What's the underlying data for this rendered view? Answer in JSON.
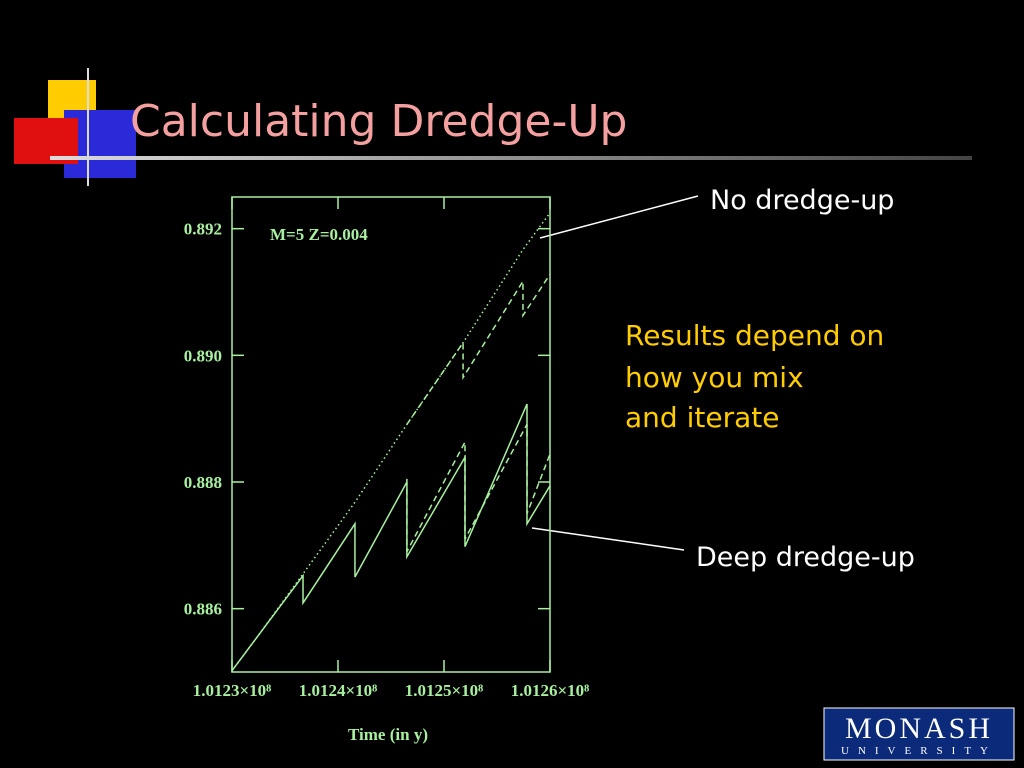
{
  "slide": {
    "title": "Calculating Dredge-Up",
    "note_lines": [
      "Results depend on",
      "how you mix",
      "and iterate"
    ],
    "logo": {
      "name": "MONASH",
      "sub": "UNIVERSITY"
    }
  },
  "chart_data": {
    "type": "line",
    "annotation": "M=5  Z=0.004",
    "xlabel": "Time (in y)",
    "xlim": [
      101230000,
      101260000
    ],
    "xticks": [
      {
        "value": 101230000,
        "label": "1.0123×10⁸"
      },
      {
        "value": 101240000,
        "label": "1.0124×10⁸"
      },
      {
        "value": 101250000,
        "label": "1.0125×10⁸"
      },
      {
        "value": 101260000,
        "label": "1.0126×10⁸"
      }
    ],
    "ylim": [
      0.885,
      0.8925
    ],
    "yticks": [
      {
        "value": 0.886,
        "label": "0.886"
      },
      {
        "value": 0.888,
        "label": "0.888"
      },
      {
        "value": 0.89,
        "label": "0.890"
      },
      {
        "value": 0.892,
        "label": "0.892"
      }
    ],
    "series": [
      {
        "name": "No dredge-up",
        "color": "#a8f0a0",
        "style": "dotted",
        "x": [
          101230000,
          101232450,
          101236700,
          101241600,
          101246500,
          101251800,
          101257450,
          101260000
        ],
        "values": [
          0.88502,
          0.88557,
          0.88655,
          0.88768,
          0.88891,
          0.8902,
          0.89167,
          0.89225
        ]
      },
      {
        "color": "#a8f0a0",
        "style": "dashed",
        "x": [
          101246500,
          101251800,
          101251800,
          101257450,
          101257450,
          101260000
        ],
        "values": [
          0.88891,
          0.8902,
          0.88965,
          0.89117,
          0.89063,
          0.89128
        ]
      },
      {
        "color": "#a8f0a0",
        "style": "dashed",
        "x": [
          101246500,
          101246500,
          101251980,
          101251980,
          101257830,
          101257830,
          101260000
        ],
        "values": [
          0.88805,
          0.8869,
          0.88863,
          0.8871,
          0.88891,
          0.8875,
          0.88844
        ]
      },
      {
        "name": "Deep dredge-up",
        "color": "#a8f0a0",
        "style": "solid",
        "x": [
          101230000,
          101232450,
          101236700,
          101236700,
          101241600,
          101241600,
          101246500,
          101246500,
          101251980,
          101251980,
          101257830,
          101257830,
          101260000
        ],
        "values": [
          0.88502,
          0.88557,
          0.88652,
          0.88609,
          0.88734,
          0.8865,
          0.888,
          0.88682,
          0.88839,
          0.88698,
          0.88923,
          0.88734,
          0.88794
        ]
      }
    ]
  }
}
